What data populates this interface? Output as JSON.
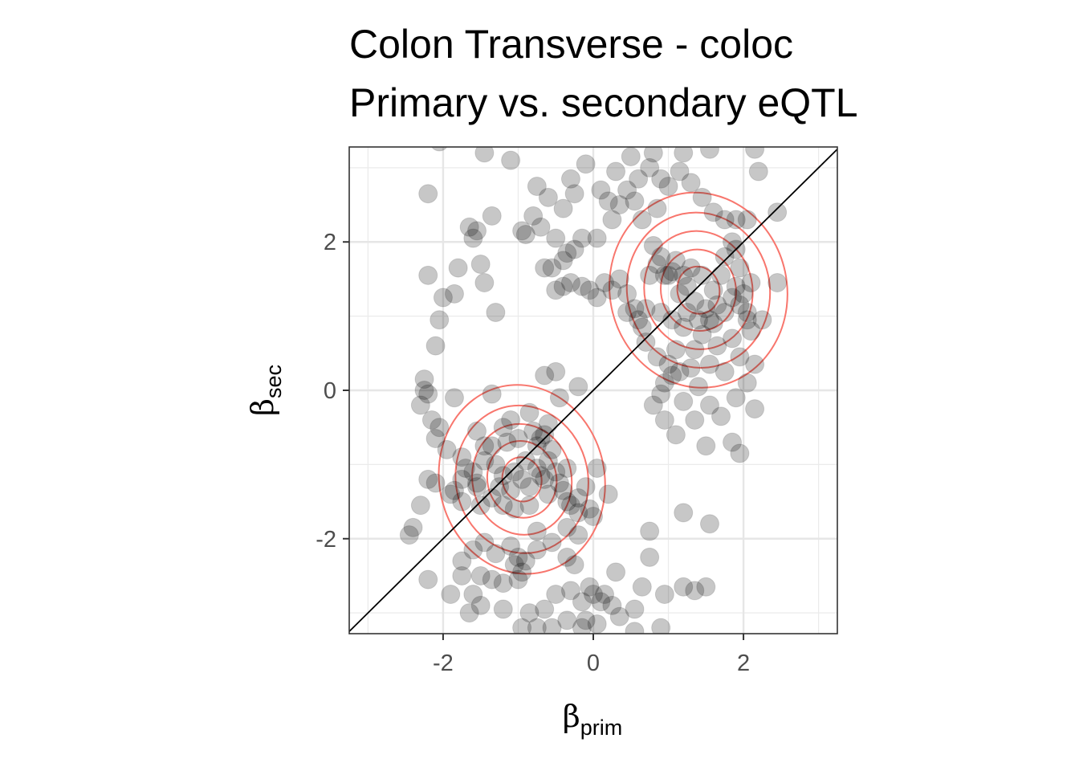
{
  "chart_data": {
    "type": "scatter",
    "title_lines": [
      "Colon Transverse - coloc",
      "Primary vs. secondary eQTL"
    ],
    "xlabel": {
      "main": "β",
      "sub": "prim"
    },
    "ylabel": {
      "main": "β",
      "sub": "sec"
    },
    "xlim": [
      -3.25,
      3.25
    ],
    "ylim": [
      -3.28,
      3.28
    ],
    "x_ticks": [
      -2,
      0,
      2
    ],
    "y_ticks": [
      -2,
      0,
      2
    ],
    "x_tick_labels": [
      "-2",
      "0",
      "2"
    ],
    "y_tick_labels": [
      "-2",
      "0",
      "2"
    ],
    "grid": true,
    "reference_line": {
      "slope": 1,
      "intercept": 0,
      "color": "#000000"
    },
    "point_style": {
      "color": "#000000",
      "opacity": 0.22
    },
    "density_contours": {
      "color": "#f8766d",
      "centers": [
        {
          "x": 1.4,
          "y": 1.35,
          "levels_sd": [
            [
              0.28,
              0.32
            ],
            [
              0.5,
              0.55
            ],
            [
              0.72,
              0.8
            ],
            [
              0.95,
              1.05
            ],
            [
              1.18,
              1.32
            ]
          ]
        },
        {
          "x": -0.95,
          "y": -1.2,
          "levels_sd": [
            [
              0.26,
              0.3
            ],
            [
              0.46,
              0.52
            ],
            [
              0.66,
              0.75
            ],
            [
              0.88,
              1.0
            ],
            [
              1.1,
              1.28
            ]
          ]
        }
      ]
    },
    "series": [
      {
        "values": [
          [
            1.05,
            1.6
          ],
          [
            1.1,
            1.75
          ],
          [
            1.2,
            1.55
          ],
          [
            1.3,
            1.65
          ],
          [
            1.25,
            1.4
          ],
          [
            1.45,
            1.55
          ],
          [
            1.35,
            1.2
          ],
          [
            1.5,
            1.1
          ],
          [
            1.6,
            1.35
          ],
          [
            1.15,
            1.3
          ],
          [
            0.95,
            1.55
          ],
          [
            0.85,
            1.7
          ],
          [
            0.75,
            1.55
          ],
          [
            0.8,
            1.95
          ],
          [
            0.9,
            1.8
          ],
          [
            1.4,
            0.95
          ],
          [
            1.6,
            0.9
          ],
          [
            1.75,
            1.05
          ],
          [
            1.85,
            1.25
          ],
          [
            1.95,
            1.15
          ],
          [
            1.9,
            1.4
          ],
          [
            2.0,
            1.3
          ],
          [
            2.05,
            0.95
          ],
          [
            2.1,
            0.8
          ],
          [
            1.85,
            0.7
          ],
          [
            1.65,
            0.6
          ],
          [
            1.45,
            0.75
          ],
          [
            1.2,
            0.85
          ],
          [
            1.05,
            0.95
          ],
          [
            0.9,
            1.05
          ],
          [
            0.65,
            0.85
          ],
          [
            0.7,
            0.65
          ],
          [
            0.85,
            0.45
          ],
          [
            1.0,
            0.35
          ],
          [
            0.95,
            0.1
          ],
          [
            0.9,
            -0.05
          ],
          [
            1.15,
            0.25
          ],
          [
            1.35,
            0.55
          ],
          [
            1.55,
            0.35
          ],
          [
            1.75,
            0.25
          ],
          [
            1.95,
            0.45
          ],
          [
            2.15,
            0.35
          ],
          [
            1.7,
            -0.35
          ],
          [
            1.35,
            -0.4
          ],
          [
            1.5,
            -0.75
          ],
          [
            1.85,
            -0.7
          ],
          [
            1.95,
            -0.85
          ],
          [
            2.15,
            -0.25
          ],
          [
            1.9,
            -0.1
          ],
          [
            2.05,
            0.1
          ],
          [
            0.15,
            1.45
          ],
          [
            0.25,
            1.35
          ],
          [
            0.35,
            1.5
          ],
          [
            0.45,
            1.3
          ],
          [
            0.55,
            1.1
          ],
          [
            0.05,
            1.25
          ],
          [
            -0.05,
            1.35
          ],
          [
            -0.15,
            1.4
          ],
          [
            -0.3,
            1.45
          ],
          [
            -0.4,
            1.4
          ],
          [
            -0.5,
            1.35
          ],
          [
            -0.55,
            1.65
          ],
          [
            -0.4,
            1.75
          ],
          [
            -0.25,
            1.9
          ],
          [
            -0.15,
            2.05
          ],
          [
            0.05,
            2.05
          ],
          [
            0.25,
            2.3
          ],
          [
            0.35,
            2.5
          ],
          [
            0.45,
            2.7
          ],
          [
            0.6,
            2.85
          ],
          [
            0.75,
            3.0
          ],
          [
            0.9,
            2.85
          ],
          [
            1.0,
            2.75
          ],
          [
            1.15,
            2.95
          ],
          [
            1.3,
            2.8
          ],
          [
            1.45,
            2.6
          ],
          [
            1.6,
            2.4
          ],
          [
            1.75,
            2.3
          ],
          [
            1.9,
            2.3
          ],
          [
            2.05,
            2.3
          ],
          [
            0.3,
            2.95
          ],
          [
            0.1,
            2.7
          ],
          [
            -0.25,
            2.65
          ],
          [
            -0.4,
            2.45
          ],
          [
            -0.6,
            2.6
          ],
          [
            -0.75,
            2.75
          ],
          [
            -0.8,
            2.35
          ],
          [
            -0.7,
            2.2
          ],
          [
            -0.9,
            2.1
          ],
          [
            -0.5,
            2.05
          ],
          [
            -0.3,
            2.85
          ],
          [
            -0.1,
            3.05
          ],
          [
            0.5,
            3.15
          ],
          [
            0.8,
            3.2
          ],
          [
            1.2,
            3.2
          ],
          [
            1.55,
            3.25
          ],
          [
            2.15,
            3.25
          ],
          [
            2.2,
            2.95
          ],
          [
            2.45,
            2.4
          ],
          [
            2.45,
            1.45
          ],
          [
            -1.65,
            2.2
          ],
          [
            -1.6,
            2.05
          ],
          [
            -1.55,
            2.15
          ],
          [
            -1.8,
            1.65
          ],
          [
            -1.5,
            1.7
          ],
          [
            -1.45,
            1.45
          ],
          [
            -1.85,
            1.3
          ],
          [
            -2.0,
            1.25
          ],
          [
            -2.05,
            0.95
          ],
          [
            -2.1,
            0.6
          ],
          [
            -1.3,
            1.05
          ],
          [
            -2.2,
            1.55
          ],
          [
            -2.2,
            2.65
          ],
          [
            -1.35,
            2.35
          ],
          [
            -1.1,
            3.1
          ],
          [
            -1.45,
            3.2
          ],
          [
            -2.05,
            3.35
          ],
          [
            -0.95,
            2.15
          ],
          [
            -0.65,
            1.65
          ],
          [
            -0.35,
            1.85
          ],
          [
            0.85,
            2.45
          ],
          [
            0.55,
            2.55
          ],
          [
            0.2,
            2.55
          ],
          [
            0.65,
            2.3
          ],
          [
            1.0,
            1.55
          ],
          [
            1.7,
            1.55
          ],
          [
            1.65,
            1.15
          ],
          [
            1.25,
            1.05
          ],
          [
            1.1,
            0.55
          ],
          [
            1.55,
            0.95
          ],
          [
            -0.95,
            -1.2
          ],
          [
            -1.05,
            -1.1
          ],
          [
            -0.85,
            -1.3
          ],
          [
            -0.75,
            -1.05
          ],
          [
            -0.7,
            -1.15
          ],
          [
            -1.1,
            -1.35
          ],
          [
            -1.2,
            -1.15
          ],
          [
            -1.3,
            -1.0
          ],
          [
            -1.25,
            -1.3
          ],
          [
            -0.9,
            -0.95
          ],
          [
            -0.7,
            -0.65
          ],
          [
            -0.65,
            -0.6
          ],
          [
            -0.75,
            -0.75
          ],
          [
            -0.8,
            -0.55
          ],
          [
            -0.55,
            -0.8
          ],
          [
            -0.6,
            -0.45
          ],
          [
            -1.0,
            -0.65
          ],
          [
            -1.15,
            -0.7
          ],
          [
            -1.35,
            -0.75
          ],
          [
            -1.45,
            -0.95
          ],
          [
            -1.6,
            -1.1
          ],
          [
            -1.75,
            -1.2
          ],
          [
            -1.85,
            -1.35
          ],
          [
            -1.75,
            -1.5
          ],
          [
            -1.5,
            -1.55
          ],
          [
            -1.35,
            -1.45
          ],
          [
            -1.55,
            -1.3
          ],
          [
            -1.2,
            -1.55
          ],
          [
            -1.05,
            -1.6
          ],
          [
            -0.85,
            -1.55
          ],
          [
            -0.6,
            -1.4
          ],
          [
            -0.45,
            -1.25
          ],
          [
            -0.4,
            -1.35
          ],
          [
            -0.3,
            -1.55
          ],
          [
            -0.2,
            -1.65
          ],
          [
            -0.05,
            -1.6
          ],
          [
            0.0,
            -1.7
          ],
          [
            -0.1,
            -1.3
          ],
          [
            -0.35,
            -1.05
          ],
          [
            -0.5,
            -1.1
          ],
          [
            -1.0,
            -2.25
          ],
          [
            -1.05,
            -2.35
          ],
          [
            -0.9,
            -2.3
          ],
          [
            -0.95,
            -2.45
          ],
          [
            -1.0,
            -2.55
          ],
          [
            -1.1,
            -2.1
          ],
          [
            -0.75,
            -2.15
          ],
          [
            -0.55,
            -2.05
          ],
          [
            -0.35,
            -2.25
          ],
          [
            -0.25,
            -2.35
          ],
          [
            -1.3,
            -2.2
          ],
          [
            -1.45,
            -2.05
          ],
          [
            -1.6,
            -2.15
          ],
          [
            -1.75,
            -2.3
          ],
          [
            -1.5,
            -2.5
          ],
          [
            -1.35,
            -2.55
          ],
          [
            -1.2,
            -2.6
          ],
          [
            -1.6,
            -2.75
          ],
          [
            -1.5,
            -2.9
          ],
          [
            -1.65,
            -3.0
          ],
          [
            -0.3,
            -2.7
          ],
          [
            -0.15,
            -2.85
          ],
          [
            0.0,
            -2.75
          ],
          [
            0.1,
            -2.85
          ],
          [
            0.25,
            -2.9
          ],
          [
            0.15,
            -2.75
          ],
          [
            -0.05,
            -2.65
          ],
          [
            -0.5,
            -2.75
          ],
          [
            -0.65,
            -2.95
          ],
          [
            -0.85,
            -3.0
          ],
          [
            -0.55,
            -3.2
          ],
          [
            -0.35,
            -3.1
          ],
          [
            -0.15,
            -3.2
          ],
          [
            0.05,
            -3.15
          ],
          [
            0.35,
            -3.05
          ],
          [
            0.55,
            -2.95
          ],
          [
            0.65,
            -2.65
          ],
          [
            0.95,
            -2.75
          ],
          [
            1.2,
            -2.65
          ],
          [
            1.35,
            -2.7
          ],
          [
            1.5,
            -2.65
          ],
          [
            0.9,
            -3.2
          ],
          [
            -0.75,
            -3.2
          ],
          [
            -0.95,
            -3.2
          ],
          [
            -1.2,
            -2.95
          ],
          [
            -2.3,
            -1.55
          ],
          [
            -2.4,
            -1.85
          ],
          [
            -2.45,
            -1.95
          ],
          [
            -2.2,
            -2.55
          ],
          [
            -1.9,
            -2.75
          ],
          [
            -2.25,
            0.15
          ],
          [
            -2.2,
            -0.05
          ],
          [
            -2.3,
            -0.2
          ],
          [
            -2.25,
            0.0
          ],
          [
            -2.15,
            -0.4
          ],
          [
            -2.05,
            -0.5
          ],
          [
            -2.1,
            -0.65
          ],
          [
            -1.95,
            -0.8
          ],
          [
            -1.75,
            -0.9
          ],
          [
            -1.85,
            -0.1
          ],
          [
            -1.55,
            -0.55
          ],
          [
            -1.45,
            -0.75
          ],
          [
            -0.45,
            -0.1
          ],
          [
            -0.85,
            -0.3
          ],
          [
            -1.1,
            -0.4
          ],
          [
            -0.6,
            -0.95
          ],
          [
            -2.1,
            -1.25
          ],
          [
            -1.9,
            -1.4
          ],
          [
            -2.2,
            -1.2
          ],
          [
            -1.7,
            -1.05
          ],
          [
            -1.55,
            -1.25
          ],
          [
            -0.35,
            -1.5
          ],
          [
            -0.2,
            -1.45
          ],
          [
            -0.65,
            -1.2
          ],
          [
            -0.75,
            -1.9
          ],
          [
            -0.35,
            -1.85
          ],
          [
            -0.2,
            -1.95
          ],
          [
            0.3,
            -2.45
          ],
          [
            0.75,
            -1.9
          ],
          [
            1.2,
            -1.65
          ],
          [
            1.55,
            -1.8
          ],
          [
            0.75,
            -2.25
          ],
          [
            -1.75,
            -2.5
          ],
          [
            -0.1,
            -3.1
          ],
          [
            0.55,
            -3.25
          ],
          [
            0.2,
            -1.4
          ],
          [
            0.05,
            -1.05
          ],
          [
            0.8,
            -0.2
          ],
          [
            0.95,
            -0.4
          ],
          [
            1.1,
            -0.6
          ],
          [
            1.4,
            0.05
          ],
          [
            1.55,
            -0.2
          ],
          [
            1.2,
            -0.15
          ],
          [
            1.05,
            0.2
          ],
          [
            1.3,
            0.3
          ],
          [
            0.6,
            0.95
          ],
          [
            0.7,
            1.1
          ],
          [
            0.45,
            1.05
          ],
          [
            1.75,
            1.8
          ],
          [
            1.9,
            1.9
          ],
          [
            2.1,
            1.45
          ],
          [
            1.95,
            1.65
          ],
          [
            2.05,
            1.05
          ],
          [
            2.25,
            0.95
          ],
          [
            1.85,
            2.0
          ],
          [
            -1.2,
            -0.5
          ],
          [
            -1.35,
            -0.05
          ],
          [
            -0.5,
            0.25
          ],
          [
            -0.2,
            0.05
          ],
          [
            -0.65,
            0.2
          ]
        ]
      }
    ]
  }
}
